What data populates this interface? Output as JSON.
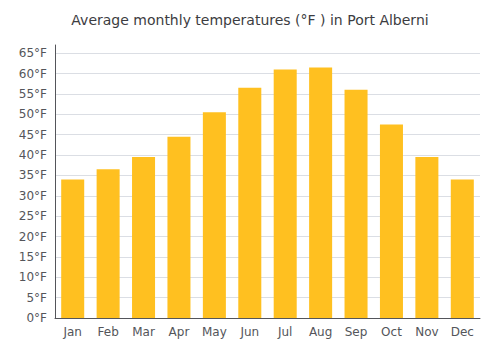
{
  "chart_data": {
    "type": "bar",
    "title": "Average monthly temperatures (°F ) in Port Alberni",
    "categories": [
      "Jan",
      "Feb",
      "Mar",
      "Apr",
      "May",
      "Jun",
      "Jul",
      "Aug",
      "Sep",
      "Oct",
      "Nov",
      "Dec"
    ],
    "values": [
      34,
      36.5,
      39.5,
      44.5,
      50.5,
      56.5,
      61,
      61.5,
      56,
      47.5,
      39.5,
      34
    ],
    "color": "#FFC020",
    "ylim": [
      0,
      67
    ],
    "yticks": [
      {
        "value": 0,
        "label": "0°F"
      },
      {
        "value": 5,
        "label": "5°F"
      },
      {
        "value": 10,
        "label": "10°F"
      },
      {
        "value": 15,
        "label": "15°F"
      },
      {
        "value": 20,
        "label": "20°F"
      },
      {
        "value": 25,
        "label": "25°F"
      },
      {
        "value": 30,
        "label": "30°F"
      },
      {
        "value": 35,
        "label": "35°F"
      },
      {
        "value": 40,
        "label": "40°F"
      },
      {
        "value": 45,
        "label": "45°F"
      },
      {
        "value": 50,
        "label": "50°F"
      },
      {
        "value": 55,
        "label": "55°F"
      },
      {
        "value": 60,
        "label": "60°F"
      },
      {
        "value": 65,
        "label": "65°F"
      }
    ],
    "grid": true
  }
}
